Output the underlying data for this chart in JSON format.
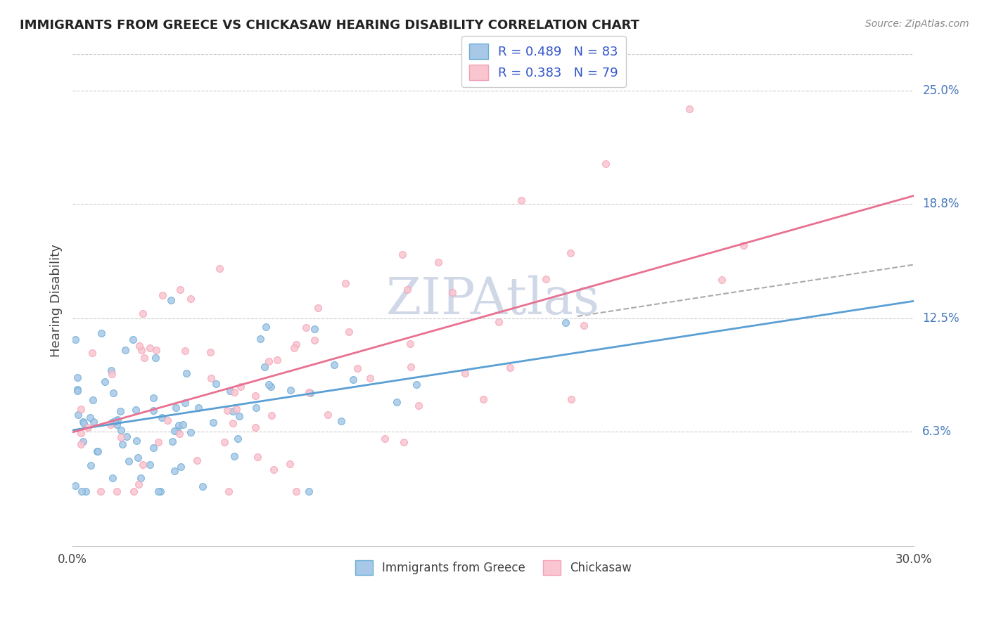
{
  "title": "IMMIGRANTS FROM GREECE VS CHICKASAW HEARING DISABILITY CORRELATION CHART",
  "source": "Source: ZipAtlas.com",
  "ylabel": "Hearing Disability",
  "y_ticks": [
    "6.3%",
    "12.5%",
    "18.8%",
    "25.0%"
  ],
  "y_tick_vals": [
    0.063,
    0.125,
    0.188,
    0.25
  ],
  "x_range": [
    0.0,
    0.3
  ],
  "y_range": [
    0.0,
    0.27
  ],
  "R_blue": 0.489,
  "N_blue": 83,
  "R_pink": 0.383,
  "N_pink": 79,
  "blue_color": "#6baed6",
  "blue_fill": "#a8c8e8",
  "pink_color": "#f4a0b5",
  "pink_fill": "#f9c6d0",
  "trend_blue": "#5a9fd4",
  "trend_pink": "#e87090",
  "trend_dash": "#aaaaaa",
  "watermark_color": "#d0d8e8",
  "legend_text_color": "#3355cc",
  "background_color": "#ffffff"
}
